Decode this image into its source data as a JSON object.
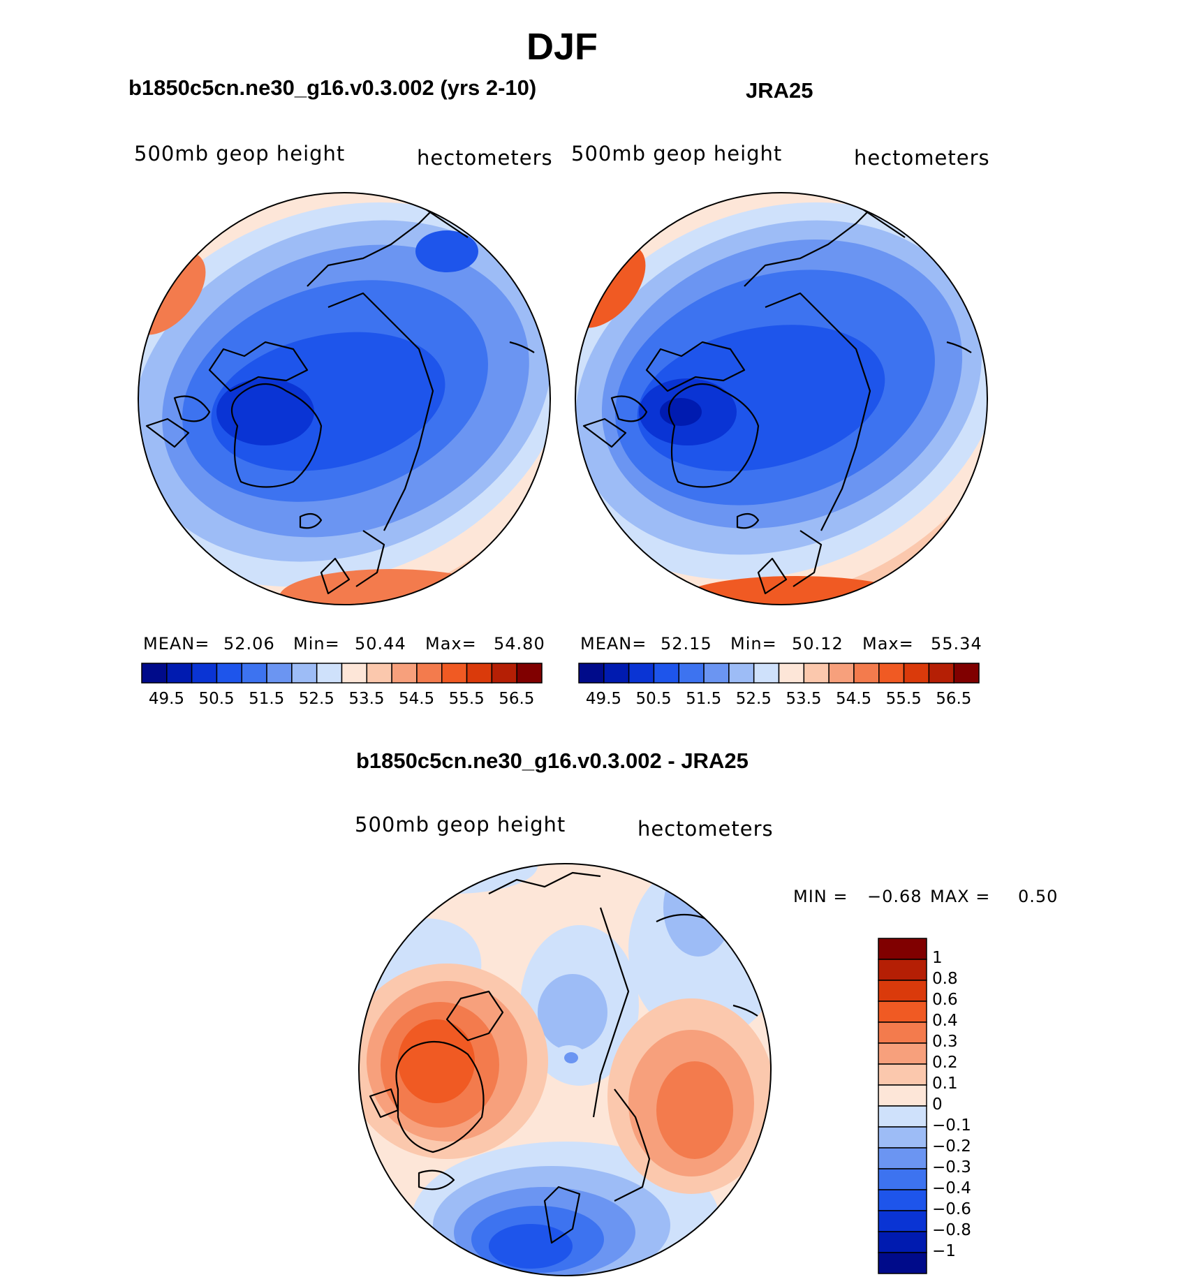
{
  "title": "DJF",
  "panels": [
    {
      "id": "model",
      "subtitle": "b1850c5cn.ne30_g16.v0.3.002 (yrs 2-10)",
      "left_label": "500mb geop height",
      "right_label": "hectometers",
      "mean_label": "MEAN=",
      "mean": "52.06",
      "min_label": "Min=",
      "min": "50.44",
      "max_label": "Max=",
      "max": "54.80"
    },
    {
      "id": "obs",
      "subtitle": "JRA25",
      "left_label": "500mb geop height",
      "right_label": "hectometers",
      "mean_label": "MEAN=",
      "mean": "52.15",
      "min_label": "Min=",
      "min": "50.12",
      "max_label": "Max=",
      "max": "55.34"
    }
  ],
  "abs_colorbar": {
    "tick_labels": [
      "49.5",
      "50.5",
      "51.5",
      "52.5",
      "53.5",
      "54.5",
      "55.5",
      "56.5"
    ],
    "colors": [
      "#000b8a",
      "#001bb0",
      "#0a34d4",
      "#1e55eb",
      "#3d73f0",
      "#6b95f2",
      "#9dbcf6",
      "#cfe1fb",
      "#fde6d8",
      "#fbc8ad",
      "#f7a07c",
      "#f37b4d",
      "#f05a23",
      "#da3a0b",
      "#b51f05",
      "#800000"
    ]
  },
  "diff": {
    "subtitle": "b1850c5cn.ne30_g16.v0.3.002 - JRA25",
    "left_label": "500mb geop height",
    "right_label": "hectometers",
    "min_label": "MIN =",
    "min": "−0.68",
    "max_label": "MAX =",
    "max": "0.50",
    "tick_labels": [
      "1",
      "0.8",
      "0.6",
      "0.4",
      "0.3",
      "0.2",
      "0.1",
      "0",
      "−0.1",
      "−0.2",
      "−0.3",
      "−0.4",
      "−0.6",
      "−0.8",
      "−1"
    ],
    "colors": [
      "#800000",
      "#b51f05",
      "#da3a0b",
      "#f05a23",
      "#f37b4d",
      "#f7a07c",
      "#fbc8ad",
      "#fde6d8",
      "#cfe1fb",
      "#9dbcf6",
      "#6b95f2",
      "#3d73f0",
      "#1e55eb",
      "#0a34d4",
      "#001bb0",
      "#000b8a"
    ]
  },
  "chart_data": [
    {
      "type": "heatmap",
      "title": "b1850c5cn.ne30_g16.v0.3.002 (yrs 2-10)",
      "field": "500mb geop height",
      "units": "hectometers",
      "projection": "north polar stereographic",
      "stats": {
        "mean": 52.06,
        "min": 50.44,
        "max": 54.8
      },
      "contour_levels": [
        49.5,
        50.5,
        51.5,
        52.5,
        53.5,
        54.5,
        55.5,
        56.5
      ]
    },
    {
      "type": "heatmap",
      "title": "JRA25",
      "field": "500mb geop height",
      "units": "hectometers",
      "projection": "north polar stereographic",
      "stats": {
        "mean": 52.15,
        "min": 50.12,
        "max": 55.34
      },
      "contour_levels": [
        49.5,
        50.5,
        51.5,
        52.5,
        53.5,
        54.5,
        55.5,
        56.5
      ]
    },
    {
      "type": "heatmap",
      "title": "b1850c5cn.ne30_g16.v0.3.002 - JRA25",
      "field": "500mb geop height",
      "units": "hectometers",
      "projection": "north polar stereographic",
      "stats": {
        "min": -0.68,
        "max": 0.5
      },
      "contour_levels": [
        -1,
        -0.8,
        -0.6,
        -0.4,
        -0.3,
        -0.2,
        -0.1,
        0,
        0.1,
        0.2,
        0.3,
        0.4,
        0.6,
        0.8,
        1
      ]
    }
  ]
}
